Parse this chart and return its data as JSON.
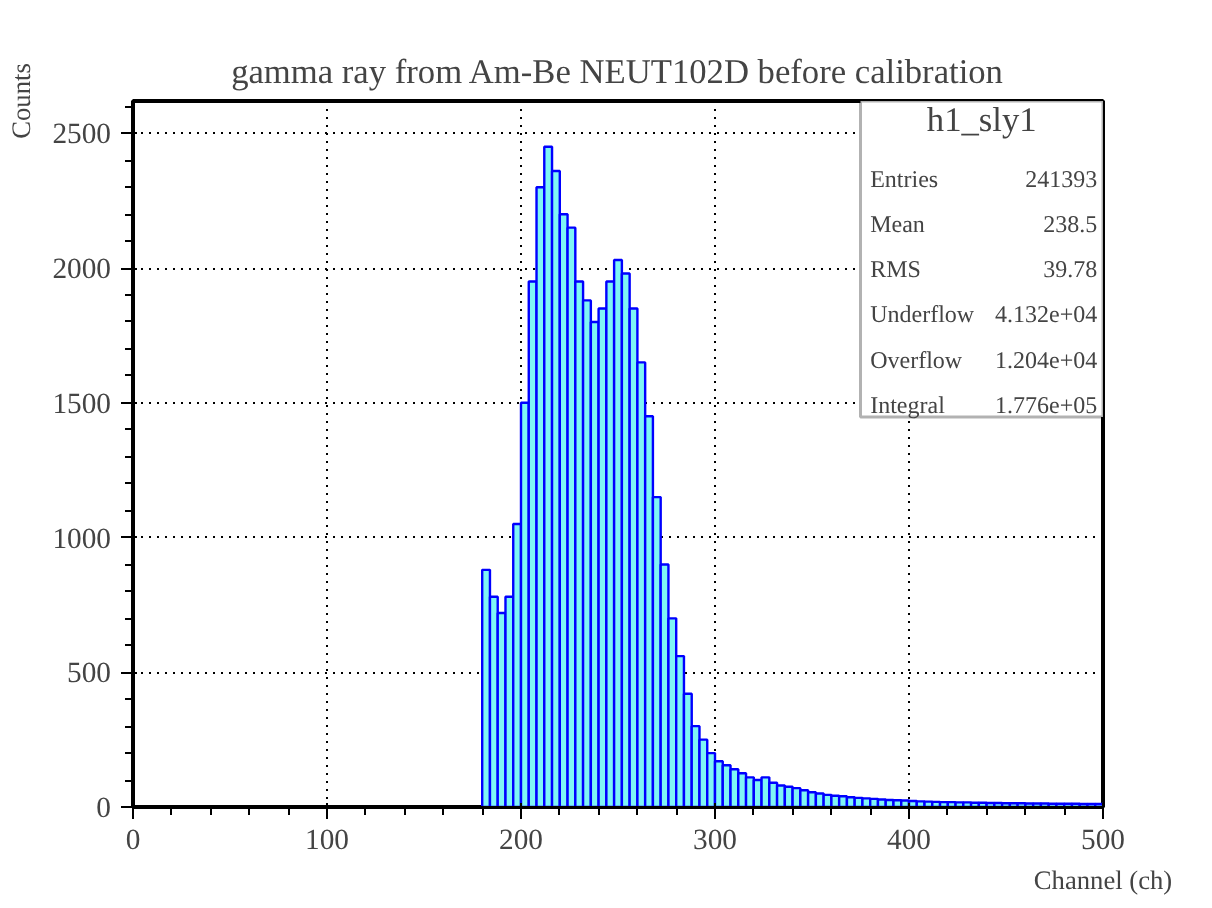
{
  "chart_data": {
    "type": "histogram",
    "title": "gamma ray from Am-Be NEUT102D before calibration",
    "xlabel": "Channel (ch)",
    "ylabel": "Counts",
    "bins": [
      180,
      184,
      188,
      192,
      196,
      200,
      204,
      208,
      212,
      216,
      220,
      224,
      228,
      232,
      236,
      240,
      244,
      248,
      252,
      256,
      260,
      264,
      268,
      272,
      276,
      280,
      284,
      288,
      292,
      296,
      300,
      304,
      308,
      312,
      316,
      320,
      324,
      328,
      332,
      336,
      340,
      344,
      348,
      352,
      356,
      360,
      364,
      368,
      372,
      376,
      380,
      384,
      388,
      392,
      396,
      400,
      404,
      408,
      412,
      416,
      420,
      424,
      428,
      432,
      436,
      440,
      444,
      448,
      452,
      456,
      460,
      464,
      468,
      472,
      476,
      480,
      484,
      488,
      492,
      496,
      500
    ],
    "values": [
      880,
      780,
      720,
      780,
      1050,
      1500,
      1950,
      2300,
      2450,
      2360,
      2200,
      2150,
      1950,
      1880,
      1800,
      1850,
      1950,
      2030,
      1980,
      1850,
      1650,
      1450,
      1150,
      900,
      700,
      560,
      420,
      300,
      250,
      200,
      170,
      155,
      140,
      125,
      110,
      100,
      110,
      90,
      80,
      75,
      70,
      62,
      55,
      50,
      45,
      42,
      40,
      36,
      34,
      32,
      30,
      28,
      26,
      25,
      24,
      22,
      21,
      20,
      19,
      18,
      18,
      17,
      17,
      16,
      16,
      15,
      15,
      14,
      14,
      14,
      13,
      13,
      13,
      12,
      12,
      12,
      12,
      11,
      11,
      11
    ],
    "color": "#7ff5f5",
    "xlim": [
      0,
      500
    ],
    "ylim": [
      0,
      2620
    ],
    "xticks": [
      0,
      100,
      200,
      300,
      400,
      500
    ],
    "yticks": [
      0,
      500,
      1000,
      1500,
      2000,
      2500
    ],
    "grid": true,
    "annotations": [
      "h1_sly1",
      "Entries",
      "241393",
      "Mean",
      "238.5",
      "RMS",
      "39.78",
      "Underflow",
      "4.132e+04",
      "Overflow",
      "1.204e+04",
      "Integral",
      "1.776e+05"
    ]
  }
}
